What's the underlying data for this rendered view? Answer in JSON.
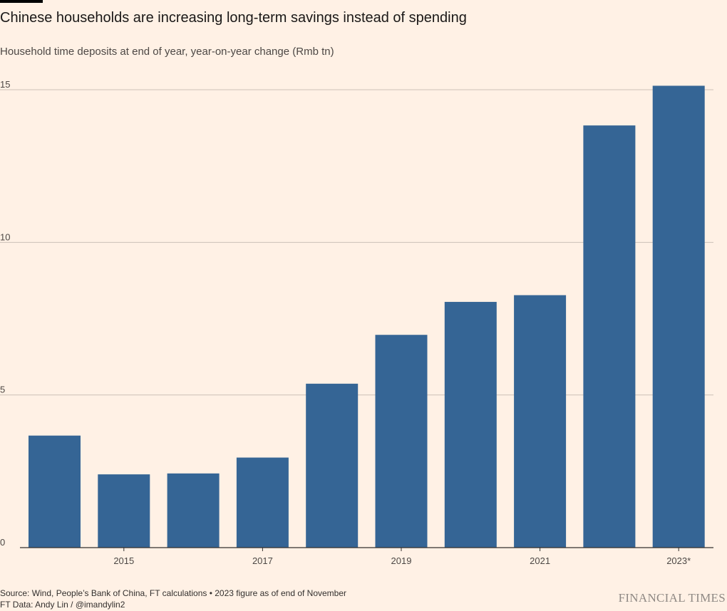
{
  "chart_data": {
    "type": "bar",
    "title": "Chinese households are increasing long-term savings instead of spending",
    "subtitle": "Household time deposits at end of year, year-on-year change (Rmb tn)",
    "categories": [
      "2014",
      "2015",
      "2016",
      "2017",
      "2018",
      "2019",
      "2020",
      "2021",
      "2022",
      "2023*"
    ],
    "x_tick_labels": [
      "",
      "2015",
      "",
      "2017",
      "",
      "2019",
      "",
      "2021",
      "",
      "2023*"
    ],
    "values": [
      3.67,
      2.4,
      2.43,
      2.95,
      5.37,
      6.97,
      8.05,
      8.27,
      13.83,
      15.13
    ],
    "ylim": [
      0,
      15.5
    ],
    "yticks": [
      0,
      5,
      10,
      15
    ],
    "xlabel": "",
    "ylabel": "",
    "grid": true,
    "bar_color": "#356595",
    "grid_color": "#ccc1b7",
    "axis_color": "#33302e"
  },
  "footer": {
    "source": "Source: Wind, People’s Bank of China, FT calculations • 2023 figure as of end of November",
    "credit": "FT Data: Andy Lin / @imandylin2",
    "brand": "FINANCIAL TIMES"
  }
}
